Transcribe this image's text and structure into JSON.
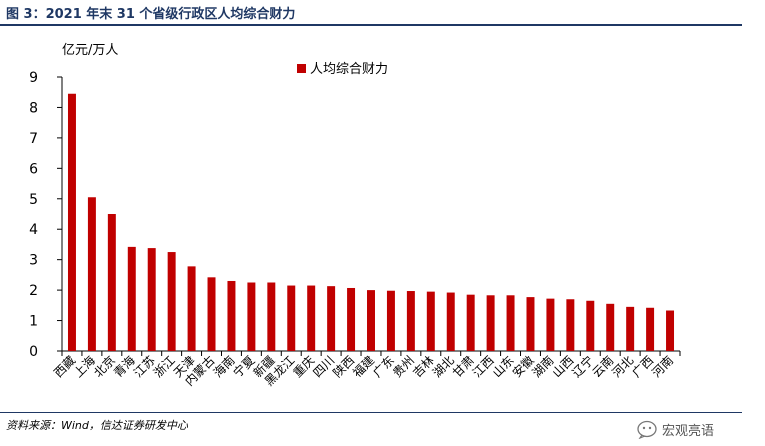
{
  "figure": {
    "title": "图 3：2021 年末 31 个省级行政区人均综合财力",
    "source": "资料来源：Wind，信达证券研发中心",
    "watermark": "宏观亮语",
    "watermark_icon": "wechat-official-account-icon"
  },
  "chart_data": {
    "type": "bar",
    "title": "",
    "xlabel": "",
    "ylabel": "亿元/万人",
    "ylim": [
      0,
      9
    ],
    "yticks": [
      0,
      1,
      2,
      3,
      4,
      5,
      6,
      7,
      8,
      9
    ],
    "grid": false,
    "legend_position": "top-center",
    "bar_color": "#C00000",
    "categories": [
      "西藏",
      "上海",
      "北京",
      "青海",
      "江苏",
      "浙江",
      "天津",
      "内蒙古",
      "海南",
      "宁夏",
      "新疆",
      "黑龙江",
      "重庆",
      "四川",
      "陕西",
      "福建",
      "广东",
      "贵州",
      "吉林",
      "湖北",
      "甘肃",
      "江西",
      "山东",
      "安徽",
      "湖南",
      "山西",
      "辽宁",
      "云南",
      "河北",
      "广西",
      "河南"
    ],
    "series": [
      {
        "name": "人均综合财力",
        "values": [
          8.45,
          5.05,
          4.5,
          3.42,
          3.38,
          3.25,
          2.78,
          2.42,
          2.3,
          2.25,
          2.25,
          2.15,
          2.15,
          2.13,
          2.07,
          2.0,
          1.98,
          1.97,
          1.95,
          1.92,
          1.85,
          1.83,
          1.83,
          1.77,
          1.72,
          1.7,
          1.65,
          1.55,
          1.45,
          1.42,
          1.33
        ]
      }
    ]
  }
}
